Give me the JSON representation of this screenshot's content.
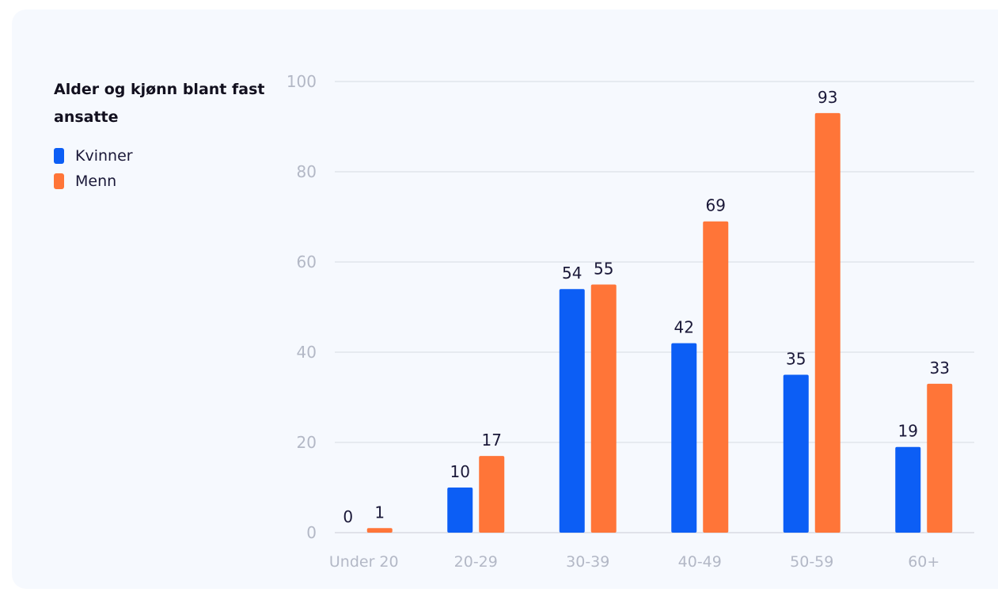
{
  "chart_data": {
    "type": "bar",
    "title": "Alder og kjønn blant fast ansatte",
    "categories": [
      "Under 20",
      "20-29",
      "30-39",
      "40-49",
      "50-59",
      "60+"
    ],
    "series": [
      {
        "name": "Kvinner",
        "color": "#0c5ef5",
        "values": [
          0,
          10,
          54,
          42,
          35,
          19
        ]
      },
      {
        "name": "Menn",
        "color": "#ff7538",
        "values": [
          1,
          17,
          55,
          69,
          93,
          33
        ]
      }
    ],
    "xlabel": "",
    "ylabel": "",
    "ylim": [
      0,
      100
    ],
    "yticks": [
      0,
      20,
      40,
      60,
      80,
      100
    ],
    "grid": true,
    "legend_position": "left",
    "data_labels": true
  }
}
